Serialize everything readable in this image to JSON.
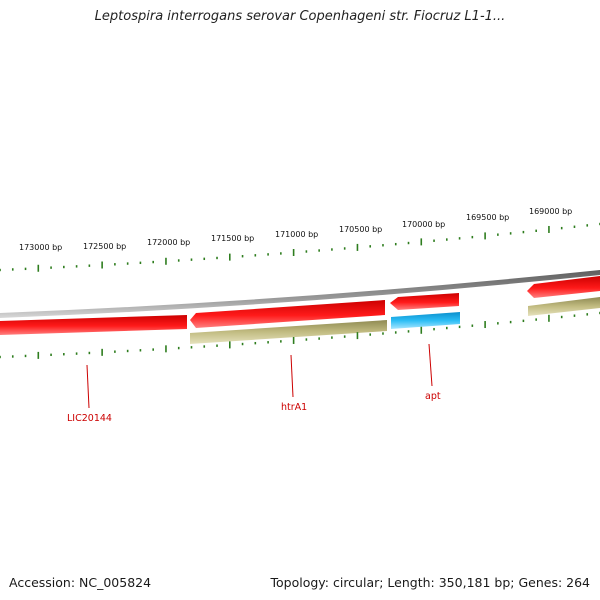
{
  "title": "Leptospira interrogans serovar Copenhageni str. Fiocruz L1-1...",
  "footer": {
    "accession": "Accession: NC_005824",
    "summary": "Topology: circular; Length: 350,181 bp; Genes: 264"
  },
  "colors": {
    "backbone": "#808080",
    "tick": "#2e7d1e",
    "gene_forward_red": "#e60000",
    "gene_reverse_olive": "#b3ad72",
    "gene_blue": "#19a9e6",
    "label": "#cc0000"
  },
  "scale": {
    "unit": "bp",
    "labels": [
      "173000 bp",
      "172500 bp",
      "172000 bp",
      "171500 bp",
      "171000 bp",
      "170500 bp",
      "170000 bp",
      "169500 bp",
      "169000 bp"
    ]
  },
  "genes": [
    {
      "name": "LIC20144",
      "label": "LIC20144"
    },
    {
      "name": "htrA1",
      "label": "htrA1"
    },
    {
      "name": "apt",
      "label": "apt"
    }
  ]
}
